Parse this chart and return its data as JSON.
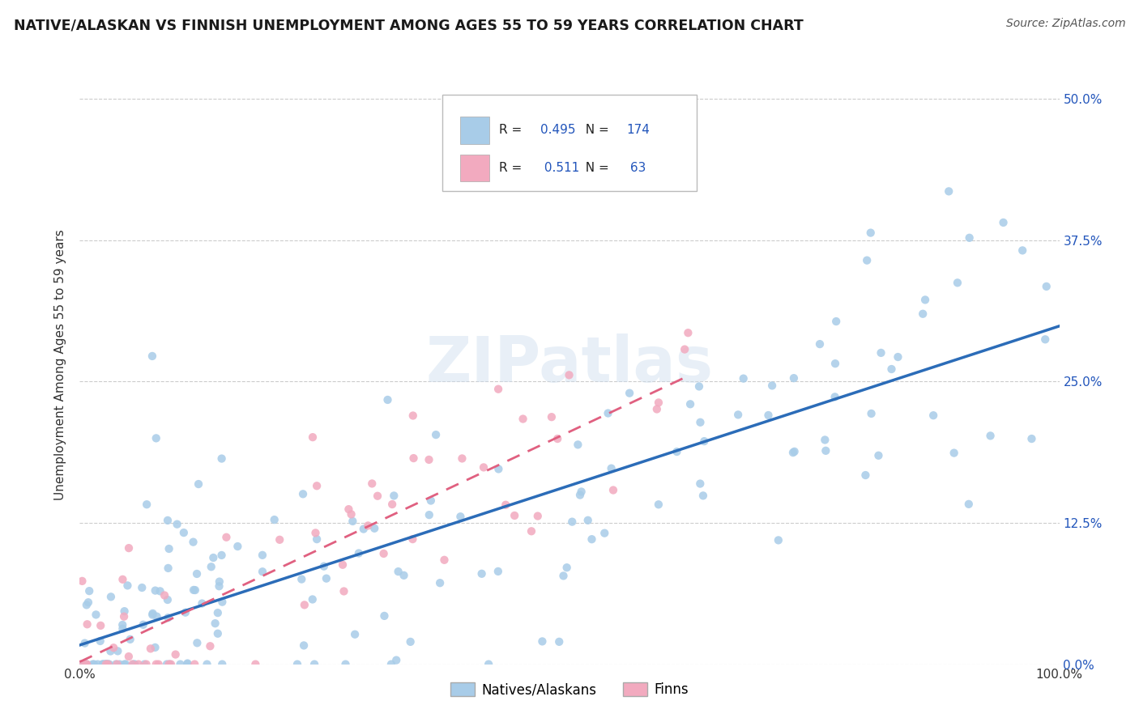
{
  "title": "NATIVE/ALASKAN VS FINNISH UNEMPLOYMENT AMONG AGES 55 TO 59 YEARS CORRELATION CHART",
  "source": "Source: ZipAtlas.com",
  "ylabel": "Unemployment Among Ages 55 to 59 years",
  "xlim": [
    0,
    1.0
  ],
  "ylim": [
    0,
    0.53
  ],
  "xtick_positions": [
    0.0,
    1.0
  ],
  "xtick_labels": [
    "0.0%",
    "100.0%"
  ],
  "ytick_vals": [
    0.0,
    0.125,
    0.25,
    0.375,
    0.5
  ],
  "ytick_labels": [
    "0.0%",
    "12.5%",
    "25.0%",
    "37.5%",
    "50.0%"
  ],
  "native_color": "#a8cce8",
  "finn_color": "#f2aabf",
  "native_R": 0.495,
  "native_N": 174,
  "finn_R": 0.511,
  "finn_N": 63,
  "legend_label_native": "Natives/Alaskans",
  "legend_label_finn": "Finns",
  "watermark": "ZIPatlas",
  "background_color": "#ffffff",
  "grid_color": "#cccccc",
  "native_line_color": "#2b6cb8",
  "finn_line_color": "#e06080",
  "native_seed": 42,
  "finn_seed": 7,
  "title_color": "#1a1a1a",
  "source_color": "#555555",
  "axis_label_color": "#4477aa",
  "R_text_color": "#2255bb"
}
